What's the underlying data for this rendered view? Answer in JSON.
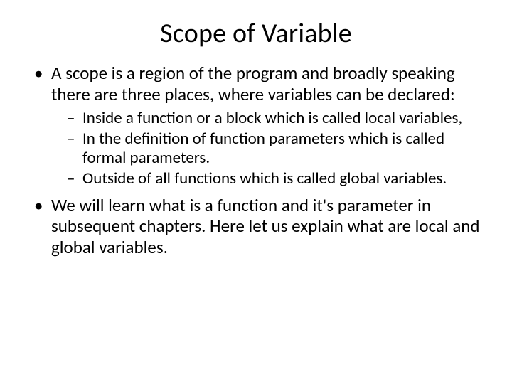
{
  "slide": {
    "title": "Scope of Variable",
    "bullets": [
      {
        "text": "A scope is a region of the program and broadly speaking there are three places, where variables can be declared:",
        "sub": [
          "Inside a function or a block which is called local variables,",
          "In the definition of function parameters which is called formal parameters.",
          "Outside of all functions which is called global variables."
        ]
      },
      {
        "text": "We will learn what is a function and it's parameter in subsequent chapters. Here let us explain what are local and global variables.",
        "sub": []
      }
    ],
    "style": {
      "background_color": "#ffffff",
      "text_color": "#000000",
      "title_fontsize": 38,
      "body_fontsize": 25,
      "sub_fontsize": 23,
      "font_family": "Calibri"
    }
  }
}
